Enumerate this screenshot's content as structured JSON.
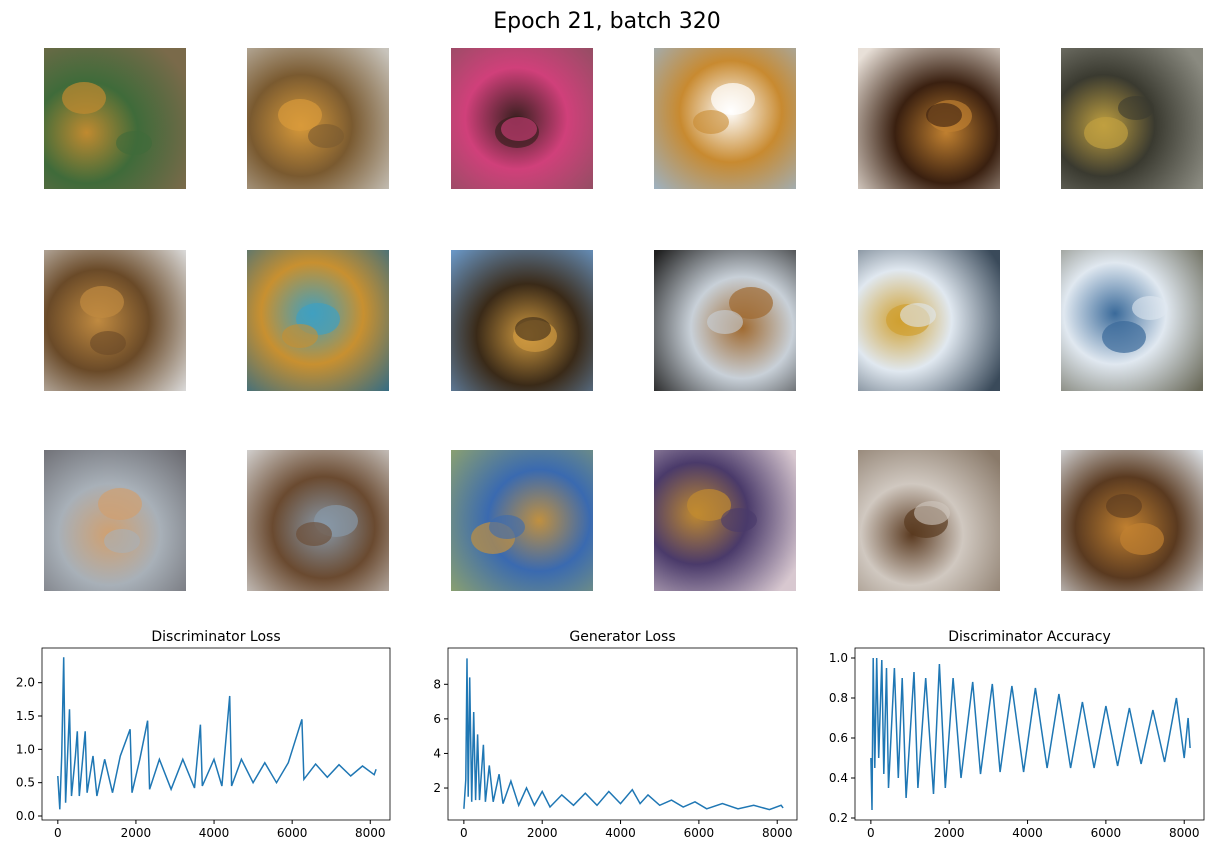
{
  "title": "Epoch 21, batch 320",
  "chart_data": [
    {
      "type": "line",
      "title": "Discriminator Loss",
      "color": "#1f77b4",
      "x": [
        0,
        50,
        100,
        150,
        200,
        300,
        350,
        450,
        500,
        550,
        700,
        750,
        900,
        1000,
        1200,
        1400,
        1600,
        1850,
        1900,
        2100,
        2300,
        2350,
        2600,
        2900,
        3200,
        3500,
        3650,
        3700,
        4000,
        4200,
        4400,
        4450,
        4700,
        5000,
        5300,
        5600,
        5900,
        6250,
        6300,
        6600,
        6900,
        7200,
        7500,
        7800,
        8100,
        8150
      ],
      "values": [
        0.6,
        0.1,
        0.9,
        2.38,
        0.2,
        1.6,
        0.3,
        0.9,
        1.27,
        0.3,
        1.27,
        0.35,
        0.9,
        0.3,
        0.85,
        0.35,
        0.9,
        1.3,
        0.35,
        0.85,
        1.43,
        0.4,
        0.85,
        0.4,
        0.85,
        0.42,
        1.37,
        0.45,
        0.85,
        0.45,
        1.8,
        0.45,
        0.85,
        0.5,
        0.8,
        0.5,
        0.8,
        1.45,
        0.55,
        0.78,
        0.58,
        0.77,
        0.6,
        0.75,
        0.62,
        0.7
      ],
      "xlim": [
        -405,
        8505
      ],
      "ylim": [
        -0.06,
        2.52
      ],
      "xticks": [
        0,
        2000,
        4000,
        6000,
        8000
      ],
      "yticks": [
        {
          "value": 0,
          "label": "0.0"
        },
        0.5,
        {
          "value": 1,
          "label": "1.0"
        },
        1.5,
        {
          "value": 2,
          "label": "2.0"
        }
      ]
    },
    {
      "type": "line",
      "title": "Generator Loss",
      "color": "#1f77b4",
      "x": [
        0,
        50,
        80,
        110,
        150,
        200,
        250,
        300,
        350,
        400,
        500,
        550,
        650,
        750,
        900,
        1000,
        1200,
        1400,
        1600,
        1800,
        2000,
        2200,
        2500,
        2800,
        3100,
        3400,
        3700,
        4000,
        4300,
        4500,
        4700,
        5000,
        5300,
        5600,
        5900,
        6200,
        6600,
        7000,
        7400,
        7800,
        8100,
        8150
      ],
      "values": [
        0.8,
        2.5,
        9.5,
        1.5,
        8.4,
        1.2,
        6.4,
        1.3,
        5.1,
        1.3,
        4.5,
        1.2,
        3.3,
        1.2,
        2.8,
        1.1,
        2.4,
        1.0,
        2.0,
        1.0,
        1.8,
        0.9,
        1.6,
        1.0,
        1.7,
        1.0,
        1.8,
        1.1,
        1.9,
        1.1,
        1.6,
        1.0,
        1.3,
        0.9,
        1.2,
        0.8,
        1.1,
        0.8,
        1.0,
        0.75,
        1.0,
        0.85
      ],
      "xlim": [
        -405,
        8505
      ],
      "ylim": [
        0.15,
        10.1
      ],
      "xticks": [
        0,
        2000,
        4000,
        6000,
        8000
      ],
      "yticks": [
        2,
        4,
        6,
        8
      ]
    },
    {
      "type": "line",
      "title": "Discriminator Accuracy",
      "color": "#1f77b4",
      "x": [
        0,
        30,
        60,
        100,
        150,
        200,
        280,
        330,
        400,
        450,
        600,
        700,
        800,
        900,
        1100,
        1200,
        1400,
        1600,
        1750,
        1900,
        2100,
        2300,
        2600,
        2800,
        3100,
        3300,
        3600,
        3900,
        4200,
        4500,
        4800,
        5100,
        5400,
        5700,
        6000,
        6300,
        6600,
        6900,
        7200,
        7500,
        7800,
        8000,
        8100,
        8150
      ],
      "values": [
        0.5,
        0.24,
        1.0,
        0.45,
        1.0,
        0.5,
        0.99,
        0.42,
        0.95,
        0.35,
        0.95,
        0.4,
        0.9,
        0.3,
        0.93,
        0.35,
        0.9,
        0.32,
        0.97,
        0.35,
        0.9,
        0.4,
        0.88,
        0.42,
        0.87,
        0.43,
        0.86,
        0.43,
        0.85,
        0.45,
        0.82,
        0.45,
        0.78,
        0.45,
        0.76,
        0.46,
        0.75,
        0.47,
        0.74,
        0.48,
        0.8,
        0.5,
        0.7,
        0.55
      ],
      "xlim": [
        -405,
        8505
      ],
      "ylim": [
        0.19,
        1.05
      ],
      "xticks": [
        0,
        2000,
        4000,
        6000,
        8000
      ],
      "yticks": [
        0.2,
        0.4,
        0.6,
        0.8,
        {
          "value": 1,
          "label": "1.0"
        }
      ]
    }
  ]
}
